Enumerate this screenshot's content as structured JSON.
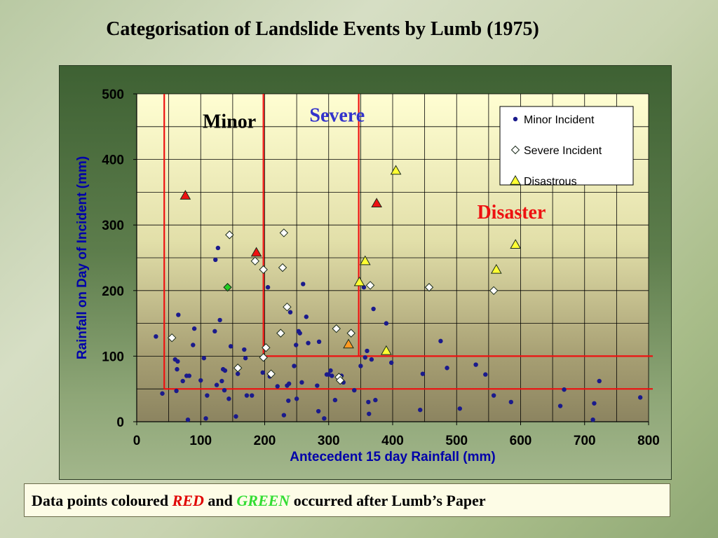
{
  "page_title": "Categorisation of Landslide Events by Lumb (1975)",
  "footer": {
    "part1": "Data points coloured ",
    "red_word": "RED",
    "part2": " and ",
    "green_word": "GREEN",
    "part3": " occurred after Lumb’s Paper"
  },
  "colors": {
    "minor": "#1a1a8c",
    "severe": "#ffffff",
    "disastrous": "#ffff33",
    "after_paper_red": "#ee1111",
    "after_paper_green": "#22cc22",
    "orange": "#ff9922",
    "boundary": "#ee1111",
    "grid": "#000000"
  },
  "chart_data": {
    "type": "scatter",
    "title": "",
    "xlabel": "Antecedent 15 day Rainfall (mm)",
    "ylabel": "Rainfall on Day of Incident (mm)",
    "xlim": [
      0,
      800
    ],
    "ylim": [
      0,
      500
    ],
    "x_ticks": [
      0,
      100,
      200,
      300,
      400,
      500,
      600,
      700,
      800
    ],
    "y_ticks": [
      0,
      100,
      200,
      300,
      400,
      500
    ],
    "grid": "both",
    "legend_position": "top-right",
    "region_labels": [
      {
        "text": "Minor",
        "x": 103,
        "y": 448,
        "color": "#000000"
      },
      {
        "text": "Severe",
        "x": 270,
        "y": 458,
        "color": "#3333cc"
      },
      {
        "text": "Disaster",
        "x": 532,
        "y": 310,
        "color": "#ee1111"
      }
    ],
    "boundaries": [
      {
        "x1": 43,
        "y1": 50,
        "x2": 43,
        "y2": 500
      },
      {
        "x1": 43,
        "y1": 50,
        "x2": 800,
        "y2": 50
      },
      {
        "x1": 198,
        "y1": 100,
        "x2": 198,
        "y2": 500
      },
      {
        "x1": 198,
        "y1": 100,
        "x2": 800,
        "y2": 100
      },
      {
        "x1": 347,
        "y1": 100,
        "x2": 347,
        "y2": 500
      }
    ],
    "series": [
      {
        "name": "Minor Incident",
        "marker": "dot",
        "points": [
          [
            30,
            130
          ],
          [
            40,
            43
          ],
          [
            60,
            95
          ],
          [
            62,
            47
          ],
          [
            63,
            80
          ],
          [
            64,
            92
          ],
          [
            65,
            163
          ],
          [
            72,
            62
          ],
          [
            78,
            70
          ],
          [
            80,
            3
          ],
          [
            82,
            70
          ],
          [
            88,
            117
          ],
          [
            90,
            142
          ],
          [
            100,
            63
          ],
          [
            105,
            97
          ],
          [
            108,
            5
          ],
          [
            110,
            40
          ],
          [
            122,
            138
          ],
          [
            123,
            247
          ],
          [
            125,
            56
          ],
          [
            127,
            265
          ],
          [
            130,
            155
          ],
          [
            133,
            62
          ],
          [
            135,
            80
          ],
          [
            137,
            48
          ],
          [
            138,
            78
          ],
          [
            144,
            35
          ],
          [
            147,
            115
          ],
          [
            155,
            8
          ],
          [
            158,
            73
          ],
          [
            168,
            110
          ],
          [
            170,
            97
          ],
          [
            172,
            40
          ],
          [
            180,
            40
          ],
          [
            197,
            75
          ],
          [
            205,
            205
          ],
          [
            208,
            69
          ],
          [
            220,
            54
          ],
          [
            230,
            10
          ],
          [
            235,
            55
          ],
          [
            237,
            32
          ],
          [
            238,
            58
          ],
          [
            240,
            167
          ],
          [
            246,
            85
          ],
          [
            249,
            117
          ],
          [
            250,
            35
          ],
          [
            253,
            138
          ],
          [
            255,
            135
          ],
          [
            258,
            60
          ],
          [
            260,
            210
          ],
          [
            265,
            160
          ],
          [
            268,
            120
          ],
          [
            282,
            55
          ],
          [
            284,
            16
          ],
          [
            285,
            122
          ],
          [
            293,
            5
          ],
          [
            297,
            72
          ],
          [
            300,
            72
          ],
          [
            303,
            78
          ],
          [
            305,
            70
          ],
          [
            310,
            33
          ],
          [
            320,
            70
          ],
          [
            323,
            60
          ],
          [
            340,
            48
          ],
          [
            350,
            85
          ],
          [
            355,
            205
          ],
          [
            357,
            98
          ],
          [
            360,
            108
          ],
          [
            362,
            30
          ],
          [
            363,
            12
          ],
          [
            367,
            95
          ],
          [
            370,
            172
          ],
          [
            373,
            33
          ],
          [
            390,
            150
          ],
          [
            398,
            90
          ],
          [
            443,
            18
          ],
          [
            447,
            73
          ],
          [
            475,
            123
          ],
          [
            485,
            82
          ],
          [
            505,
            20
          ],
          [
            530,
            87
          ],
          [
            545,
            72
          ],
          [
            558,
            40
          ],
          [
            585,
            30
          ],
          [
            662,
            24
          ],
          [
            668,
            49
          ],
          [
            713,
            3
          ],
          [
            715,
            28
          ],
          [
            723,
            62
          ],
          [
            787,
            37
          ]
        ]
      },
      {
        "name": "Severe Incident",
        "marker": "diamond",
        "points": [
          [
            55,
            128,
            "#ffffff"
          ],
          [
            145,
            285,
            "#ffffff"
          ],
          [
            185,
            245,
            "#ffffff"
          ],
          [
            198,
            232,
            "#ffffff"
          ],
          [
            198,
            98,
            "#ffffff"
          ],
          [
            202,
            113,
            "#ffffff"
          ],
          [
            210,
            73,
            "#ffffff"
          ],
          [
            225,
            135,
            "#ffffff"
          ],
          [
            228,
            235,
            "#ffffff"
          ],
          [
            230,
            288,
            "#ffffff"
          ],
          [
            235,
            175,
            "#ffffff"
          ],
          [
            312,
            142,
            "#ffffff"
          ],
          [
            316,
            68,
            "#ffffff"
          ],
          [
            318,
            63,
            "#ffffff"
          ],
          [
            335,
            135,
            "#ffffff"
          ],
          [
            365,
            208,
            "#ffffff"
          ],
          [
            457,
            205,
            "#ffffff"
          ],
          [
            558,
            200,
            "#ffffff"
          ],
          [
            142,
            205,
            "#22cc22"
          ],
          [
            158,
            82,
            "#ffffff"
          ]
        ]
      },
      {
        "name": "Disastrous",
        "marker": "triangle",
        "points": [
          [
            76,
            345,
            "#ee1111"
          ],
          [
            187,
            258,
            "#ee1111"
          ],
          [
            375,
            333,
            "#ee1111"
          ],
          [
            331,
            118,
            "#ff9922"
          ],
          [
            348,
            213,
            "#ffff33"
          ],
          [
            357,
            245,
            "#ffff33"
          ],
          [
            390,
            108,
            "#ffff33"
          ],
          [
            405,
            383,
            "#ffff33"
          ],
          [
            562,
            232,
            "#ffff33"
          ],
          [
            592,
            270,
            "#ffff33"
          ]
        ]
      }
    ]
  }
}
